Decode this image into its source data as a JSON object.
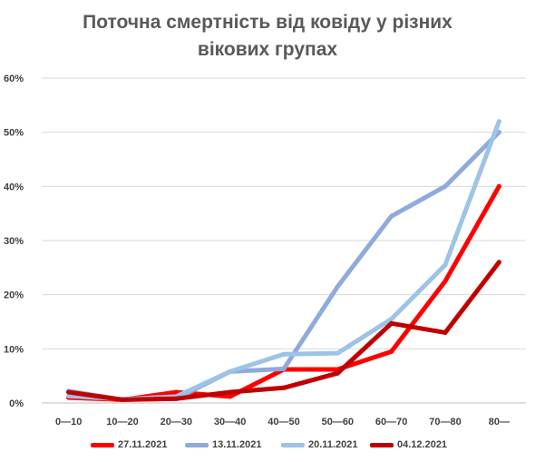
{
  "title_line1": "Поточна смертність від ковіду у різних",
  "title_line2": "вікових групах",
  "chart_data": {
    "type": "line",
    "title": "Поточна смертність від ковіду у різних вікових групах",
    "categories": [
      "0—10",
      "10—20",
      "20—30",
      "30—40",
      "40—50",
      "50—60",
      "60—70",
      "70—80",
      "80—"
    ],
    "y_ticks": [
      "0%",
      "10%",
      "20%",
      "30%",
      "40%",
      "50%",
      "60%"
    ],
    "ylim": [
      0,
      60
    ],
    "y_unit": "%",
    "grid": true,
    "legend_position": "bottom",
    "series": [
      {
        "name": "27.11.2021",
        "color": "#ff0000",
        "values": [
          1.0,
          0.6,
          2.0,
          1.2,
          6.2,
          6.2,
          9.5,
          22.5,
          40.0
        ]
      },
      {
        "name": "13.11.2021",
        "color": "#8faadc",
        "values": [
          2.2,
          0.6,
          0.8,
          5.8,
          6.3,
          21.5,
          34.5,
          40.0,
          50.0
        ]
      },
      {
        "name": "20.11.2021",
        "color": "#9dc3e6",
        "values": [
          1.3,
          0.7,
          1.2,
          5.8,
          9.0,
          9.2,
          15.5,
          25.5,
          52.0
        ]
      },
      {
        "name": "04.12.2021",
        "color": "#c00000",
        "values": [
          2.0,
          0.6,
          0.8,
          2.0,
          2.8,
          5.5,
          14.7,
          13.0,
          26.0
        ]
      }
    ]
  }
}
